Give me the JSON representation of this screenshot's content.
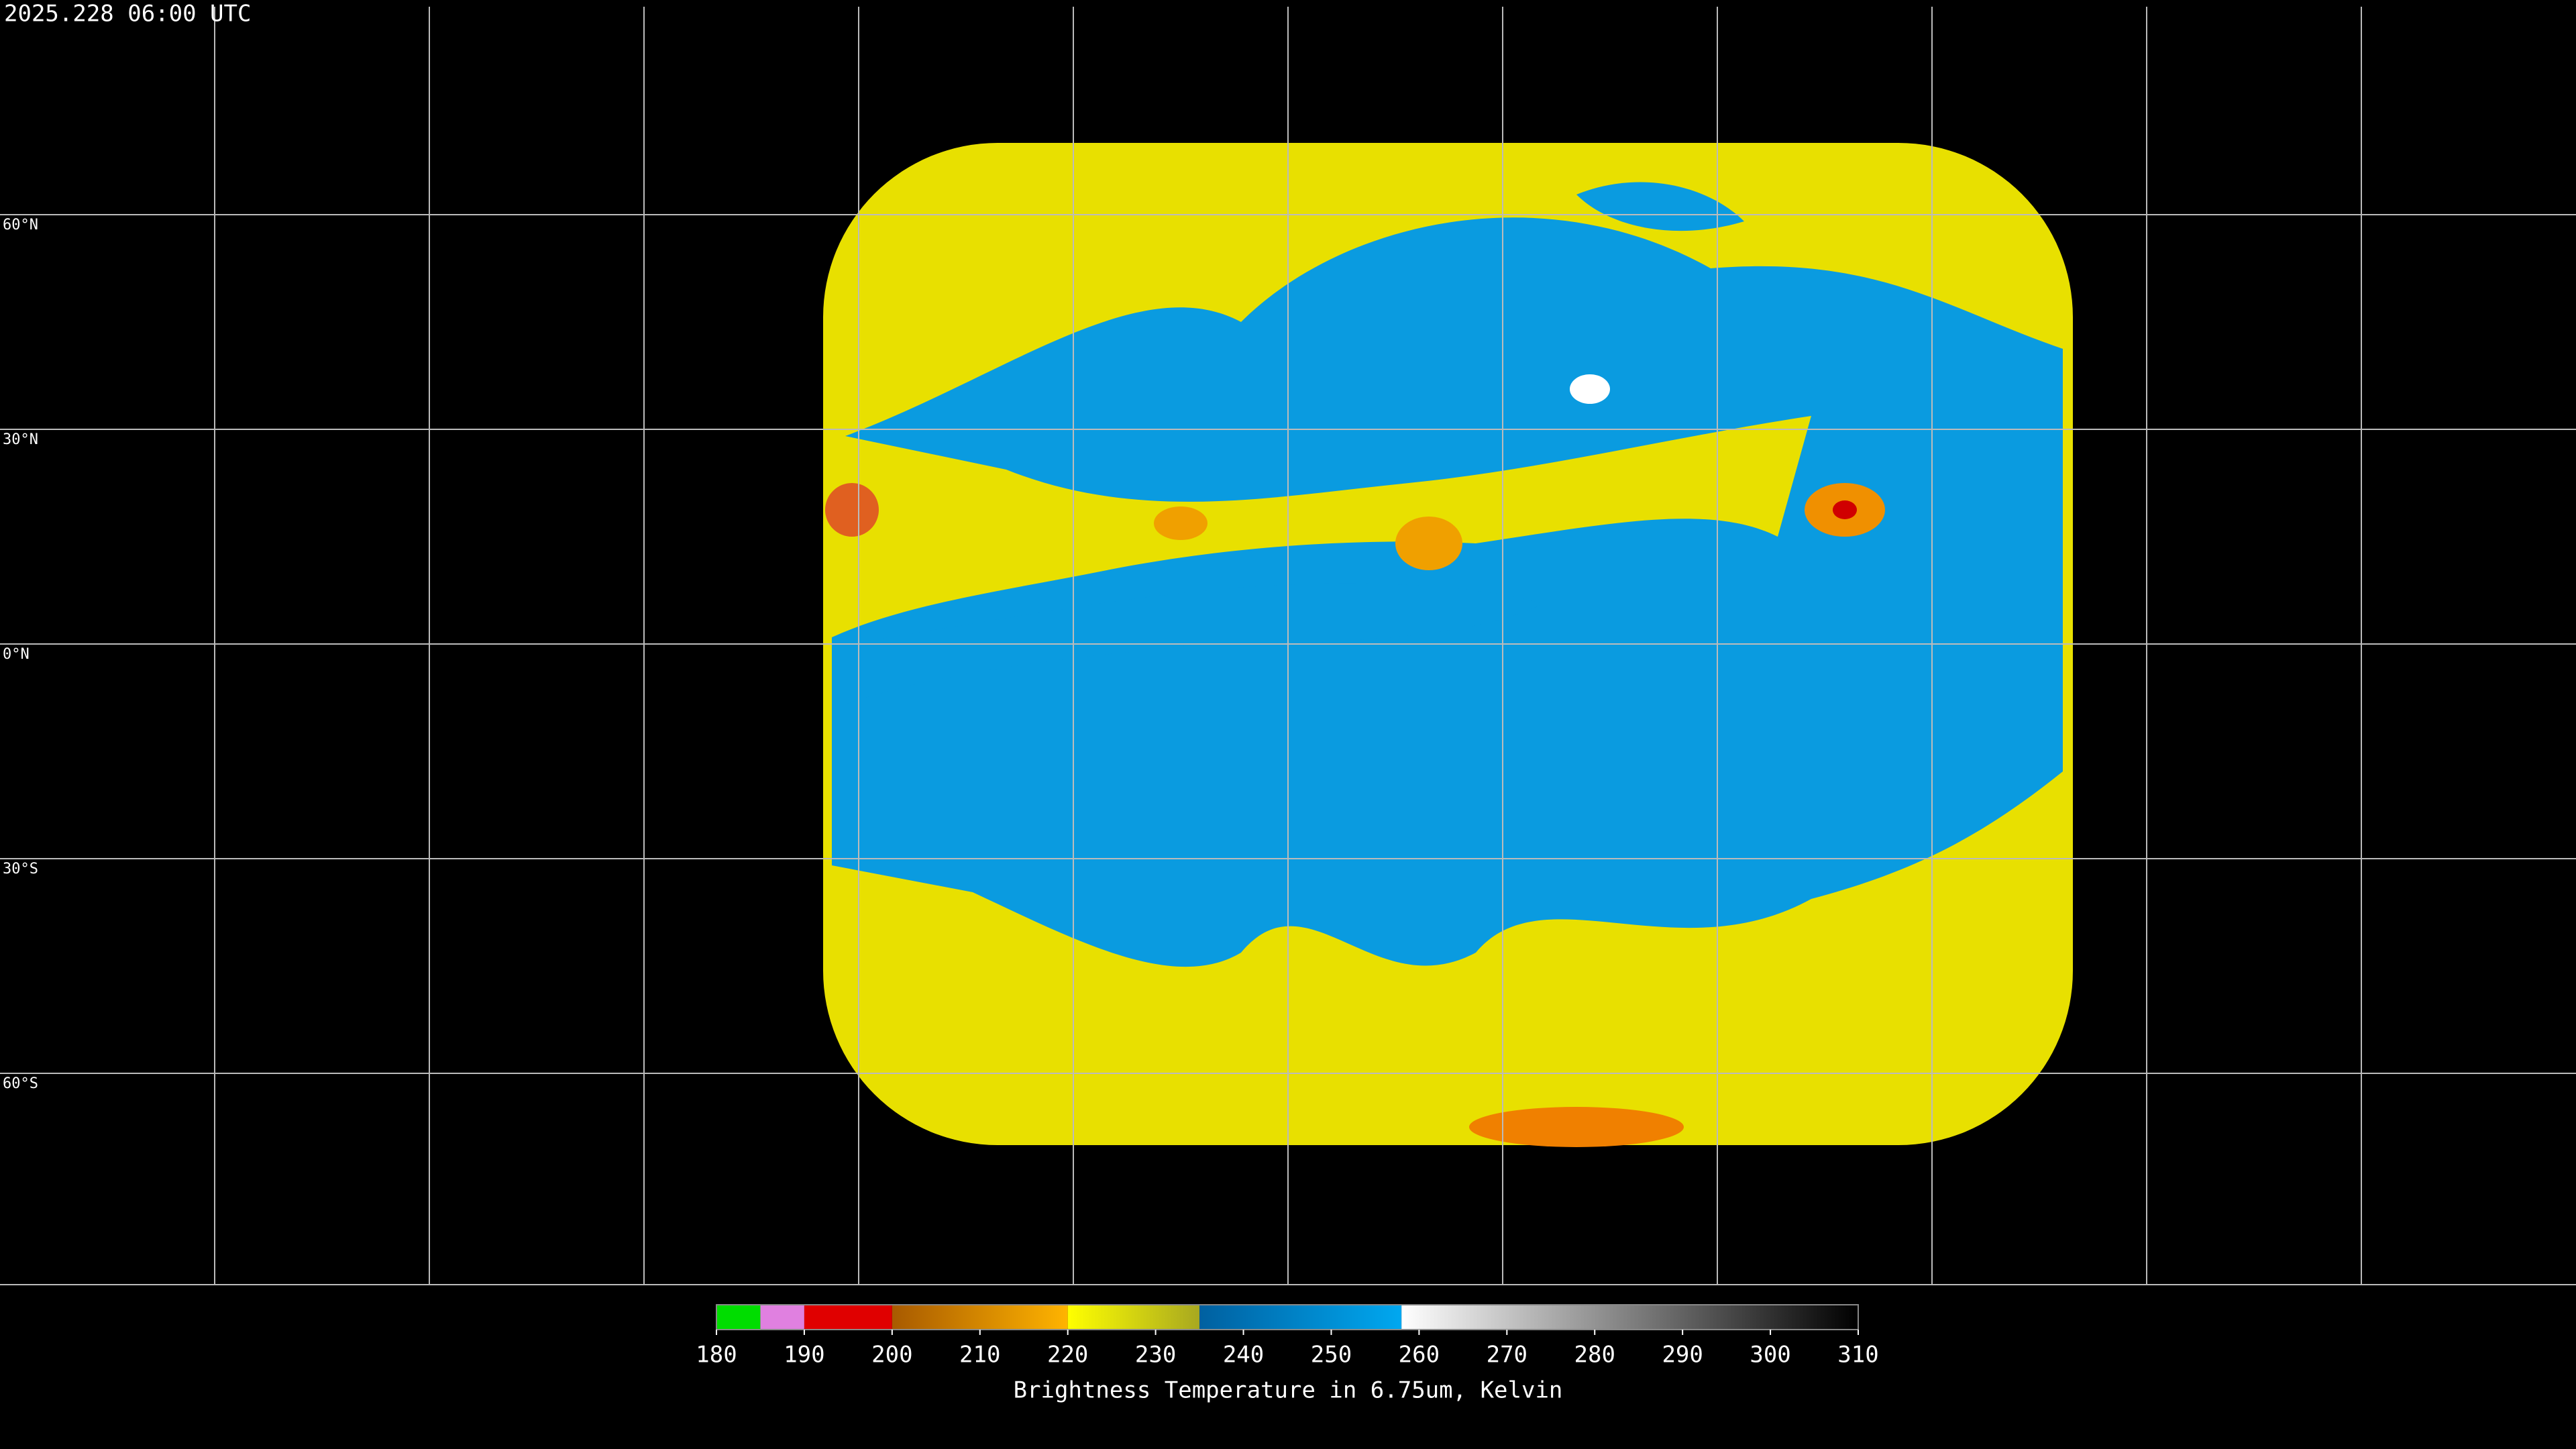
{
  "title": "2025.228 06:00 UTC",
  "lat_labels": [
    "60°N",
    "30°N",
    "0°N",
    "30°S",
    "60°S"
  ],
  "colorbar": {
    "label": "Brightness Temperature in 6.75um, Kelvin",
    "range": [
      180,
      310
    ],
    "ticks": [
      180,
      190,
      200,
      210,
      220,
      230,
      240,
      250,
      260,
      270,
      280,
      290,
      300,
      310
    ],
    "segments": [
      {
        "from": 180,
        "to": 185,
        "colors": [
          "#00dd00",
          "#00dd00"
        ]
      },
      {
        "from": 185,
        "to": 190,
        "colors": [
          "#e080e0",
          "#e080e0"
        ]
      },
      {
        "from": 190,
        "to": 200,
        "colors": [
          "#e00000",
          "#e00000"
        ]
      },
      {
        "from": 200,
        "to": 220,
        "colors": [
          "#a85a00",
          "#ffb400"
        ]
      },
      {
        "from": 220,
        "to": 235,
        "colors": [
          "#ffff00",
          "#a8a820"
        ]
      },
      {
        "from": 235,
        "to": 258,
        "colors": [
          "#0060a0",
          "#00a8f0"
        ]
      },
      {
        "from": 258,
        "to": 310,
        "colors": [
          "#ffffff",
          "#000000"
        ]
      }
    ]
  }
}
